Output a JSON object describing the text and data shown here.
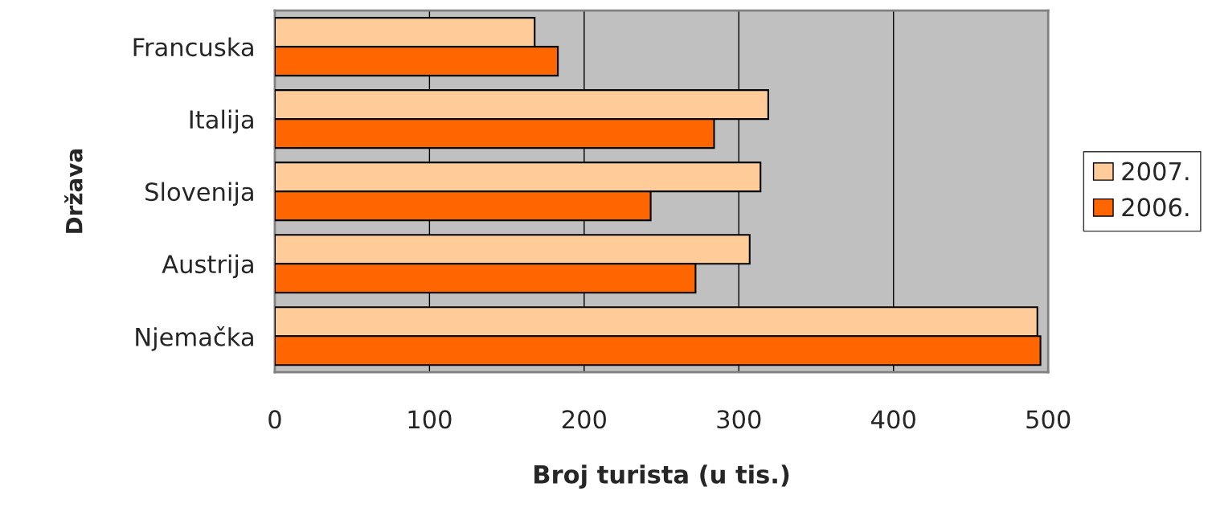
{
  "chart_data": {
    "type": "bar",
    "orientation": "horizontal",
    "xlabel": "Broj turista (u tis.)",
    "ylabel": "Država",
    "categories": [
      "Francuska",
      "Italija",
      "Slovenija",
      "Austrija",
      "Njemačka"
    ],
    "series": [
      {
        "name": "2007.",
        "color": "#ffcc99",
        "values": [
          168,
          319,
          314,
          307,
          493
        ]
      },
      {
        "name": "2006.",
        "color": "#ff6600",
        "values": [
          183,
          284,
          243,
          272,
          495
        ]
      }
    ],
    "xlim": [
      0,
      500
    ],
    "xticks": [
      0,
      100,
      200,
      300,
      400,
      500
    ],
    "grid": "x",
    "legend": "right"
  }
}
